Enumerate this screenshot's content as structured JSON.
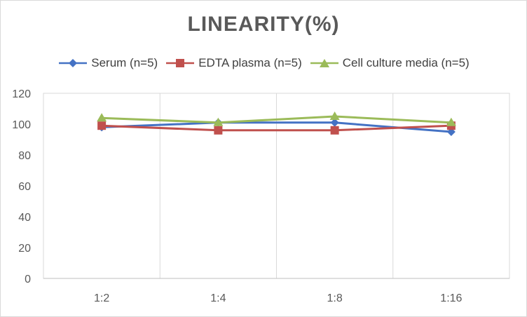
{
  "chart_data": {
    "type": "line",
    "title": "LINEARITY(%)",
    "categories": [
      "1:2",
      "1:4",
      "1:8",
      "1:16"
    ],
    "ylim": [
      0,
      120
    ],
    "yticks": [
      0,
      20,
      40,
      60,
      80,
      100,
      120
    ],
    "grid": "vertical",
    "legend_position": "top",
    "series": [
      {
        "name": "Serum (n=5)",
        "values": [
          98,
          101,
          101,
          95
        ],
        "color": "#4472c4",
        "marker": "diamond"
      },
      {
        "name": "EDTA plasma (n=5)",
        "values": [
          99,
          96,
          96,
          99
        ],
        "color": "#c0504d",
        "marker": "square"
      },
      {
        "name": "Cell culture media (n=5)",
        "values": [
          104,
          101,
          105,
          101
        ],
        "color": "#9bbb59",
        "marker": "triangle"
      }
    ]
  }
}
